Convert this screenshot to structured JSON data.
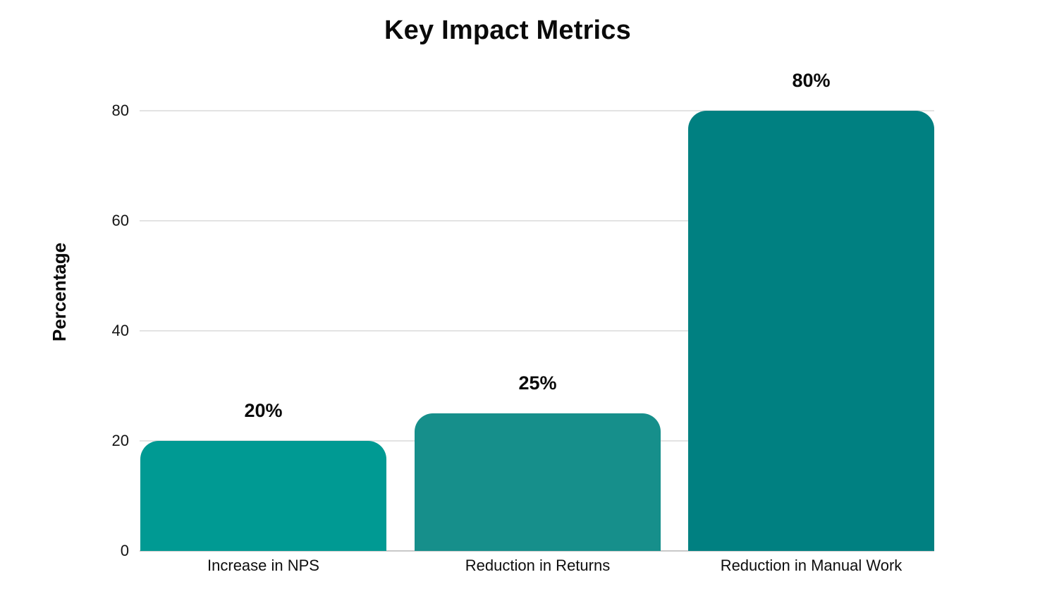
{
  "chart_data": {
    "type": "bar",
    "title": "Key Impact Metrics",
    "xlabel": "",
    "ylabel": "Percentage",
    "categories": [
      "Increase in NPS",
      "Reduction in Returns",
      "Reduction in Manual Work"
    ],
    "values": [
      20,
      25,
      80
    ],
    "value_labels": [
      "20%",
      "25%",
      "80%"
    ],
    "bar_colors": [
      "#009A93",
      "#168F8B",
      "#008081"
    ],
    "ylim": [
      0,
      80
    ],
    "yticks": [
      0,
      20,
      40,
      60,
      80
    ],
    "grid": true,
    "legend": false,
    "gridline_color": "#e3e3e3",
    "axis_line_color": "#c9c9c9",
    "background_color": "#ffffff",
    "text_color": "#0b0b0b"
  }
}
